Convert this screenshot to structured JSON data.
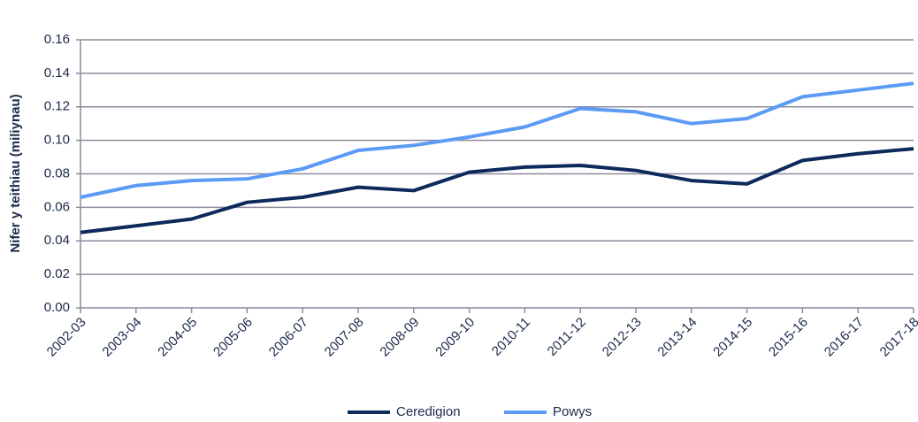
{
  "chart_data": {
    "type": "line",
    "y_axis_label": "Nifer y teithiau (miliynau)",
    "categories": [
      "2002-03",
      "2003-04",
      "2004-05",
      "2005-06",
      "2006-07",
      "2007-08",
      "2008-09",
      "2009-10",
      "2010-11",
      "2011-12",
      "2012-13",
      "2013-14",
      "2014-15",
      "2015-16",
      "2016-17",
      "2017-18"
    ],
    "series": [
      {
        "name": "Ceredigion",
        "color": "#0d2a5c",
        "values": [
          0.045,
          0.049,
          0.053,
          0.063,
          0.066,
          0.072,
          0.07,
          0.081,
          0.084,
          0.085,
          0.082,
          0.076,
          0.074,
          0.088,
          0.092,
          0.095
        ]
      },
      {
        "name": "Powys",
        "color": "#5b9bf5",
        "values": [
          0.066,
          0.073,
          0.076,
          0.077,
          0.083,
          0.094,
          0.097,
          0.102,
          0.108,
          0.119,
          0.117,
          0.11,
          0.113,
          0.126,
          0.13,
          0.134
        ]
      }
    ],
    "ylim": [
      0,
      0.16
    ],
    "yticks": [
      {
        "value": 0,
        "label": "0.00"
      },
      {
        "value": 0.02,
        "label": "0.02"
      },
      {
        "value": 0.04,
        "label": "0.04"
      },
      {
        "value": 0.06,
        "label": "0.06"
      },
      {
        "value": 0.08,
        "label": "0.08"
      },
      {
        "value": 0.1,
        "label": "0.10"
      },
      {
        "value": 0.12,
        "label": "0.12"
      },
      {
        "value": 0.14,
        "label": "0.14"
      },
      {
        "value": 0.16,
        "label": "0.16"
      }
    ],
    "grid": true,
    "legend": "bottom"
  }
}
